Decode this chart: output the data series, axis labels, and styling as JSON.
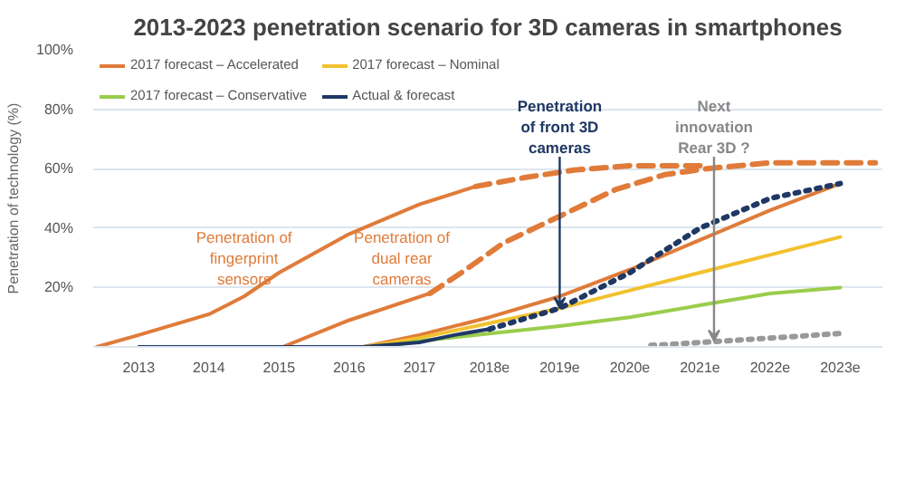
{
  "chart_data": {
    "type": "line",
    "title": "2013-2023 penetration scenario for 3D cameras in smartphones",
    "ylabel": "Penetration of technology (%)",
    "xlim": [
      2012.35,
      2023.6
    ],
    "ylim": [
      0,
      100
    ],
    "xticks": [
      2013,
      2014,
      2015,
      2016,
      2017,
      {
        "value": 2018,
        "label": "2018e"
      },
      {
        "value": 2019,
        "label": "2019e"
      },
      {
        "value": 2020,
        "label": "2020e"
      },
      {
        "value": 2021,
        "label": "2021e"
      },
      {
        "value": 2022,
        "label": "2022e"
      },
      {
        "value": 2023,
        "label": "2023e"
      }
    ],
    "yticks": [
      {
        "value": 0,
        "label": null
      },
      {
        "value": 20,
        "label": "20%"
      },
      {
        "value": 40,
        "label": "40%"
      },
      {
        "value": 60,
        "label": "60%"
      },
      {
        "value": 80,
        "label": "80%"
      },
      {
        "value": 100,
        "label": "100%"
      }
    ],
    "grid": "y",
    "legend": "top left",
    "series": [
      {
        "color": "#e07b39",
        "line_style": "solid",
        "x": [
          2012.4,
          2013,
          2014,
          2014.5,
          2015,
          2016,
          2017,
          2017.8
        ],
        "values": [
          0,
          4,
          11,
          17,
          25,
          38,
          48,
          54
        ]
      },
      {
        "color": "#e07b39",
        "line_style": "dashed",
        "x": [
          2017.8,
          2018.5,
          2019.2,
          2020,
          2021
        ],
        "values": [
          54,
          57,
          59.5,
          61,
          61
        ]
      },
      {
        "color": "#e07b39",
        "line_style": "solid",
        "x": [
          2015.05,
          2016,
          2017.15
        ],
        "values": [
          0,
          9,
          18
        ]
      },
      {
        "color": "#e07b39",
        "line_style": "dashed",
        "x": [
          2017.15,
          2017.6,
          2018.2,
          2019,
          2019.8,
          2020.5,
          2021.1,
          2022,
          2023.5
        ],
        "values": [
          18,
          25,
          35,
          44,
          53,
          58,
          60,
          62,
          62
        ]
      },
      {
        "name": "2017 forecast – Accelerated",
        "color": "#e07b39",
        "line_style": "solid",
        "x": [
          2016.2,
          2017,
          2018,
          2019,
          2020,
          2021,
          2022,
          2023
        ],
        "values": [
          0,
          4,
          10,
          17,
          26,
          36,
          46,
          55
        ]
      },
      {
        "name": "2017 forecast – Nominal",
        "color": "#f2c12e",
        "line_style": "solid",
        "x": [
          2016.2,
          2017,
          2018,
          2019,
          2020,
          2021,
          2022,
          2023
        ],
        "values": [
          0,
          3,
          8,
          13,
          19,
          25,
          31,
          37
        ]
      },
      {
        "name": "2017 forecast – Conservative",
        "color": "#9acd4c",
        "line_style": "solid",
        "x": [
          2016.5,
          2017,
          2018,
          2019,
          2020,
          2021,
          2022,
          2023
        ],
        "values": [
          0,
          2,
          4.5,
          7,
          10,
          14,
          18,
          20
        ]
      },
      {
        "name": "Actual & forecast",
        "color": "#1f3864",
        "line_style": "solid",
        "x": [
          2013,
          2016.2,
          2017,
          2017.5,
          2018
        ],
        "values": [
          0,
          0,
          1.5,
          4,
          6
        ]
      },
      {
        "color": "#1f3864",
        "line_style": "dotted",
        "x": [
          2018,
          2019,
          2020,
          2021,
          2022,
          2023
        ],
        "values": [
          6,
          13,
          25,
          40,
          50,
          55
        ]
      },
      {
        "color": "#999999",
        "line_style": "dotted",
        "x": [
          2020.3,
          2021,
          2022,
          2023
        ],
        "values": [
          0.5,
          1.5,
          3,
          4.5
        ]
      }
    ],
    "annotations": [
      "Penetration of\nfingerprint\nsensors",
      "Penetration of\ndual rear\ncameras",
      {
        "text": "Penetration\nof front 3D\ncameras",
        "x": 2019,
        "y": 13
      },
      {
        "text": "Next\ninnovation\nRear 3D ?",
        "x": 2021.2,
        "y": 2
      }
    ]
  }
}
